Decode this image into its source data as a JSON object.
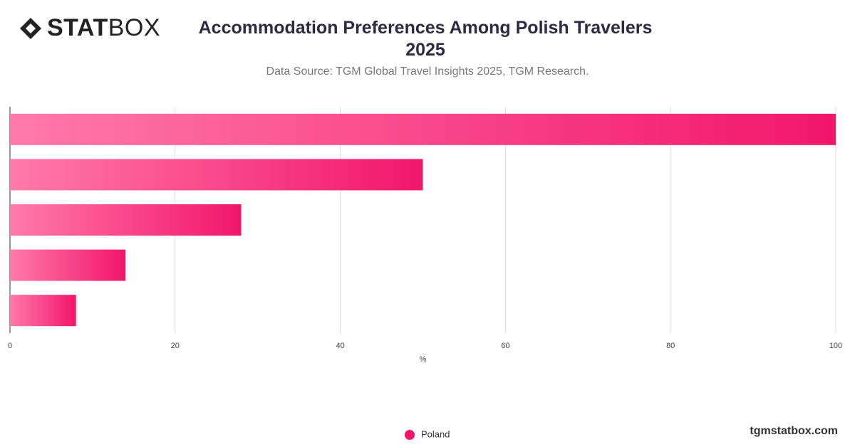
{
  "header": {
    "logo": [
      "STAT",
      "BOX"
    ],
    "footer": "tgmstatbox.com"
  },
  "chart_data": {
    "type": "hbar",
    "title": "Accommodation Preferences Among Polish Travelers 2025",
    "subtitle": "Data Source: TGM Global Travel Insights 2025, TGM Research.",
    "x_label": "%",
    "categories": [
      null,
      null,
      null,
      null,
      null
    ],
    "series": [
      {
        "name": "Poland",
        "color": "#f2166a",
        "values": [
          100,
          50,
          28,
          14,
          8
        ]
      }
    ],
    "xlim": [
      0,
      100
    ],
    "xticks": [
      0,
      20,
      40,
      60,
      80,
      100
    ],
    "grid": true,
    "legend": "bottom"
  }
}
